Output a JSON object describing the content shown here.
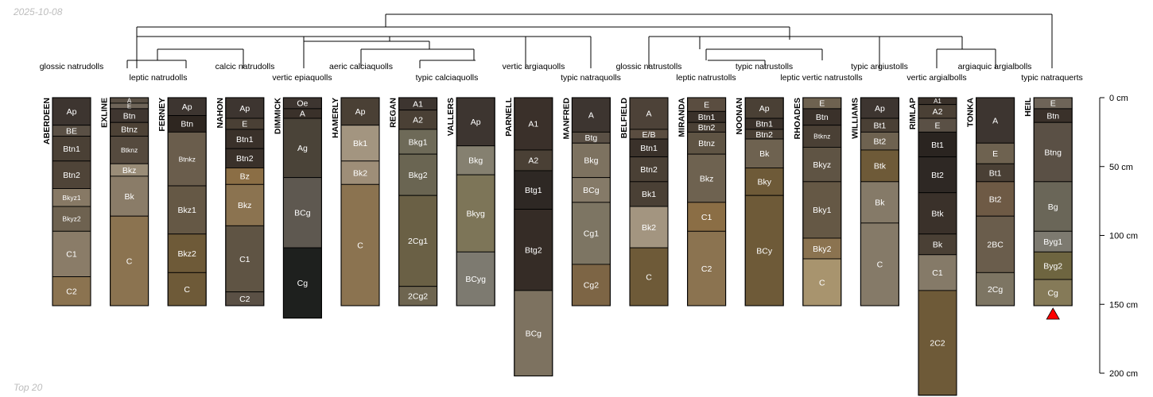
{
  "timestamp": "2025-10-08",
  "footer": "Top 20",
  "depth_axis": {
    "ticks": [
      0,
      50,
      100,
      150,
      200
    ],
    "unit": "cm"
  },
  "dendrogram_labels": [
    "glossic natrudolls",
    "leptic natrudolls",
    "calcic natrudolls",
    "vertic epiaquolls",
    "aeric calciaquolls",
    "typic calciaquolls",
    "vertic argiaquolls",
    "typic natraquolls",
    "glossic natrustolls",
    "leptic natrustolls",
    "typic natrustolls",
    "leptic vertic natrustolls",
    "typic argiustolls",
    "vertic argialbolls",
    "argiaquic argialbolls",
    "typic natraquerts"
  ],
  "profiles": [
    {
      "name": "ABERDEEN",
      "horizons": [
        [
          "Ap",
          0,
          20,
          "#3d3530"
        ],
        [
          "BE",
          20,
          28,
          "#5a5045"
        ],
        [
          "Btn1",
          28,
          46,
          "#4a4035"
        ],
        [
          "Btn2",
          46,
          66,
          "#4f4438"
        ],
        [
          "Bkyz1",
          66,
          79,
          "#877965"
        ],
        [
          "Bkyz2",
          79,
          97,
          "#6e6250"
        ],
        [
          "C1",
          97,
          130,
          "#8a7c68"
        ],
        [
          "C2",
          130,
          151,
          "#8b7350"
        ]
      ]
    },
    {
      "name": "EXLINE",
      "horizons": [
        [
          "A",
          0,
          4,
          "#5a5045"
        ],
        [
          "E",
          4,
          8,
          "#6e6458"
        ],
        [
          "Btn",
          8,
          18,
          "#3f3630"
        ],
        [
          "Btnz",
          18,
          28,
          "#4d4236"
        ],
        [
          "Btknz",
          28,
          48,
          "#554a3e"
        ],
        [
          "Bkz",
          48,
          57,
          "#9a8d78"
        ],
        [
          "Bk",
          57,
          86,
          "#8a7c68"
        ],
        [
          "C",
          86,
          151,
          "#8b7350"
        ]
      ]
    },
    {
      "name": "FERNEY",
      "horizons": [
        [
          "Ap",
          0,
          13,
          "#3d3530"
        ],
        [
          "Btn",
          13,
          25,
          "#2e2620"
        ],
        [
          "Btnkz",
          25,
          64,
          "#6a5d4c"
        ],
        [
          "Bkz1",
          64,
          99,
          "#655845"
        ],
        [
          "Bkz2",
          99,
          127,
          "#6e5a38"
        ],
        [
          "C",
          127,
          151,
          "#6e5a38"
        ]
      ]
    },
    {
      "name": "NAHON",
      "horizons": [
        [
          "Ap",
          0,
          15,
          "#3d3530"
        ],
        [
          "E",
          15,
          23,
          "#4a4035"
        ],
        [
          "Btn1",
          23,
          37,
          "#3a312a"
        ],
        [
          "Btn2",
          37,
          51,
          "#3a312a"
        ],
        [
          "Bz",
          51,
          63,
          "#8b6e45"
        ],
        [
          "Bkz",
          63,
          93,
          "#8b7350"
        ],
        [
          "C1",
          93,
          141,
          "#5f5444"
        ],
        [
          "C2",
          141,
          151,
          "#5a5045"
        ]
      ]
    },
    {
      "name": "DIMMICK",
      "horizons": [
        [
          "Oe",
          0,
          8,
          "#3d3530"
        ],
        [
          "A",
          8,
          15,
          "#3a312a"
        ],
        [
          "Ag",
          15,
          58,
          "#4a4338"
        ],
        [
          "BCg",
          58,
          109,
          "#5e5850"
        ],
        [
          "Cg",
          109,
          160,
          "#1e201e"
        ]
      ]
    },
    {
      "name": "HAMERLY",
      "horizons": [
        [
          "Ap",
          0,
          20,
          "#4a4035"
        ],
        [
          "Bk1",
          20,
          46,
          "#a39580"
        ],
        [
          "Bk2",
          46,
          63,
          "#9e8e78"
        ],
        [
          "C",
          63,
          151,
          "#8b7350"
        ]
      ]
    },
    {
      "name": "REGAN",
      "horizons": [
        [
          "A1",
          0,
          9,
          "#3d3530"
        ],
        [
          "A2",
          9,
          23,
          "#4a4035"
        ],
        [
          "Bkg1",
          23,
          41,
          "#6e6a58"
        ],
        [
          "Bkg2",
          41,
          71,
          "#6a6552"
        ],
        [
          "2Cg1",
          71,
          137,
          "#6a6045"
        ],
        [
          "2Cg2",
          137,
          151,
          "#6e6550"
        ]
      ]
    },
    {
      "name": "VALLERS",
      "horizons": [
        [
          "Ap",
          0,
          35,
          "#3d3530"
        ],
        [
          "Bkg",
          35,
          56,
          "#858070"
        ],
        [
          "Bkyg",
          56,
          112,
          "#7d7558"
        ],
        [
          "BCyg",
          112,
          151,
          "#7d7a70"
        ]
      ]
    },
    {
      "name": "PARNELL",
      "horizons": [
        [
          "A1",
          0,
          38,
          "#3a302a"
        ],
        [
          "A2",
          38,
          53,
          "#4a4035"
        ],
        [
          "Btg1",
          53,
          81,
          "#2e2824"
        ],
        [
          "Btg2",
          81,
          140,
          "#352c26"
        ],
        [
          "BCg",
          140,
          202,
          "#7d7260"
        ]
      ]
    },
    {
      "name": "MANFRED",
      "horizons": [
        [
          "A",
          0,
          25,
          "#3d3530"
        ],
        [
          "Btg",
          25,
          33,
          "#5a5045"
        ],
        [
          "Bkg",
          33,
          58,
          "#7d7260"
        ],
        [
          "BCg",
          58,
          76,
          "#857a68"
        ],
        [
          "Cg1",
          76,
          121,
          "#7d7563"
        ],
        [
          "Cg2",
          121,
          151,
          "#7d6545"
        ]
      ]
    },
    {
      "name": "BELFIELD",
      "horizons": [
        [
          "A",
          0,
          23,
          "#4d4238"
        ],
        [
          "E/B",
          23,
          30,
          "#5a4d40"
        ],
        [
          "Btn1",
          30,
          43,
          "#3a312a"
        ],
        [
          "Btn2",
          43,
          61,
          "#4a4035"
        ],
        [
          "Bk1",
          61,
          79,
          "#4a4035"
        ],
        [
          "Bk2",
          79,
          109,
          "#a39580"
        ],
        [
          "C",
          109,
          151,
          "#6e5a38"
        ]
      ]
    },
    {
      "name": "MIRANDA",
      "horizons": [
        [
          "E",
          0,
          10,
          "#5a4d40"
        ],
        [
          "Btn1",
          10,
          18,
          "#3a312a"
        ],
        [
          "Btn2",
          18,
          25,
          "#4a4035"
        ],
        [
          "Btnz",
          25,
          41,
          "#5f5444"
        ],
        [
          "Bkz",
          41,
          76,
          "#6e6250"
        ],
        [
          "C1",
          76,
          97,
          "#8b6e45"
        ],
        [
          "C2",
          97,
          151,
          "#8b7350"
        ]
      ]
    },
    {
      "name": "NOONAN",
      "horizons": [
        [
          "Ap",
          0,
          15,
          "#4a4035"
        ],
        [
          "Btn1",
          15,
          23,
          "#3a312a"
        ],
        [
          "Btn2",
          23,
          30,
          "#4a4035"
        ],
        [
          "Bk",
          30,
          51,
          "#6e6250"
        ],
        [
          "Bky",
          51,
          71,
          "#6e5a38"
        ],
        [
          "BCy",
          71,
          151,
          "#6e5a38"
        ]
      ]
    },
    {
      "name": "RHOADES",
      "horizons": [
        [
          "E",
          0,
          8,
          "#6e6250"
        ],
        [
          "Btn",
          8,
          20,
          "#3a312a"
        ],
        [
          "Btknz",
          20,
          36,
          "#4a4035"
        ],
        [
          "Bkyz",
          36,
          61,
          "#5f5444"
        ],
        [
          "Bky1",
          61,
          102,
          "#655845"
        ],
        [
          "Bky2",
          102,
          117,
          "#8b7350"
        ],
        [
          "C",
          117,
          151,
          "#a8946e"
        ]
      ]
    },
    {
      "name": "WILLIAMS",
      "horizons": [
        [
          "Ap",
          0,
          15,
          "#3d3530"
        ],
        [
          "Bt1",
          15,
          25,
          "#4a4035"
        ],
        [
          "Bt2",
          25,
          38,
          "#6e6250"
        ],
        [
          "Btk",
          38,
          61,
          "#6e5a38"
        ],
        [
          "Bk",
          61,
          91,
          "#857a68"
        ],
        [
          "C",
          91,
          151,
          "#857a68"
        ]
      ]
    },
    {
      "name": "RIMLAP",
      "horizons": [
        [
          "A1",
          0,
          5,
          "#3a312a"
        ],
        [
          "A2",
          5,
          15,
          "#4a4035"
        ],
        [
          "E",
          15,
          25,
          "#5a5045"
        ],
        [
          "Bt1",
          25,
          43,
          "#2a2420"
        ],
        [
          "Bt2",
          43,
          69,
          "#2e2824"
        ],
        [
          "Btk",
          69,
          99,
          "#3a312a"
        ],
        [
          "Bk",
          99,
          114,
          "#4a4035"
        ],
        [
          "C1",
          114,
          140,
          "#857a68"
        ],
        [
          "2C2",
          140,
          216,
          "#6e5a38"
        ]
      ]
    },
    {
      "name": "TONKA",
      "horizons": [
        [
          "A",
          0,
          33,
          "#3d3530"
        ],
        [
          "E",
          33,
          48,
          "#6e6250"
        ],
        [
          "Bt1",
          48,
          61,
          "#4a4035"
        ],
        [
          "Bt2",
          61,
          86,
          "#6e5a45"
        ],
        [
          "2BC",
          86,
          127,
          "#6a5d4c"
        ],
        [
          "2Cg",
          127,
          151,
          "#7d7563"
        ]
      ]
    },
    {
      "name": "HEIL",
      "horizons": [
        [
          "E",
          0,
          8,
          "#6e6458"
        ],
        [
          "Btn",
          8,
          18,
          "#3a312a"
        ],
        [
          "Btng",
          18,
          61,
          "#5a5045"
        ],
        [
          "Bg",
          61,
          97,
          "#6a6658"
        ],
        [
          "Byg1",
          97,
          112,
          "#7d7a70"
        ],
        [
          "Byg2",
          112,
          132,
          "#6e6540"
        ],
        [
          "Cg",
          132,
          151,
          "#857a58"
        ]
      ]
    }
  ]
}
